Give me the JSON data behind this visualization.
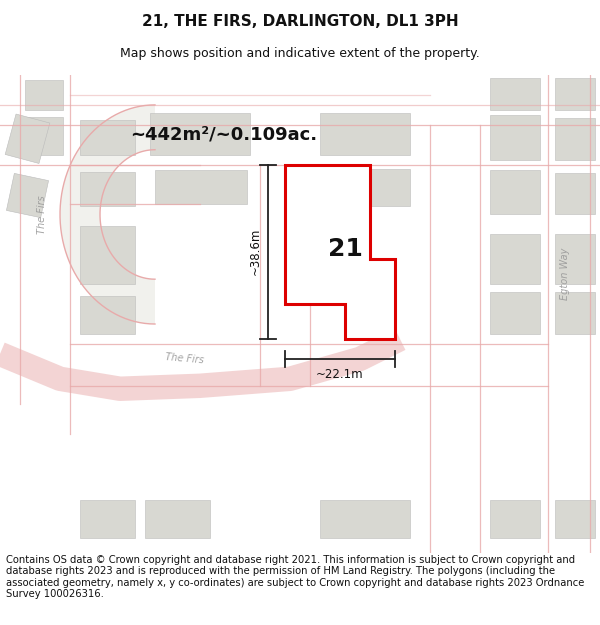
{
  "title": "21, THE FIRS, DARLINGTON, DL1 3PH",
  "subtitle": "Map shows position and indicative extent of the property.",
  "footer": "Contains OS data © Crown copyright and database right 2021. This information is subject to Crown copyright and database rights 2023 and is reproduced with the permission of HM Land Registry. The polygons (including the associated geometry, namely x, y co-ordinates) are subject to Crown copyright and database rights 2023 Ordnance Survey 100026316.",
  "area_label": "~442m²/~0.109ac.",
  "property_number": "21",
  "dim_height": "~38.6m",
  "dim_width": "~22.1m",
  "map_bg": "#eeeeea",
  "building_color": "#d8d8d2",
  "building_edge": "#bbbbbb",
  "road_fill": "#e8e8e2",
  "road_line_color": "#e8aaaa",
  "plot_outline_color": "#dd0000",
  "dim_line_color": "#222222",
  "street_label_color": "#999999",
  "title_fontsize": 11,
  "subtitle_fontsize": 9,
  "footer_fontsize": 7.2,
  "area_fontsize": 13,
  "number_fontsize": 18
}
